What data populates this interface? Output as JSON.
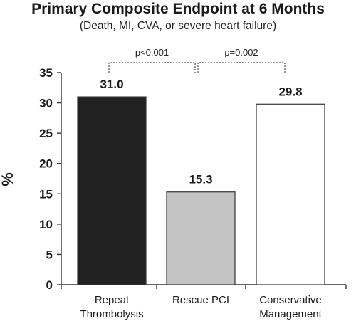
{
  "chart_data": {
    "type": "bar",
    "title": "Primary Composite Endpoint at 6 Months",
    "subtitle": "(Death, MI, CVA, or severe heart failure)",
    "ylabel": "%",
    "xlabel": "",
    "ylim": [
      0,
      35
    ],
    "yticks": [
      0,
      5,
      10,
      15,
      20,
      25,
      30,
      35
    ],
    "categories": [
      [
        "Repeat",
        "Thrombolysis"
      ],
      [
        "Rescue PCI"
      ],
      [
        "Conservative",
        "Management"
      ]
    ],
    "values": [
      31.0,
      15.3,
      29.8
    ],
    "value_labels": [
      "31.0",
      "15.3",
      "29.8"
    ],
    "bar_colors": [
      "#222222",
      "#c4c4c4",
      "#ffffff"
    ],
    "comparisons": [
      {
        "from": 0,
        "to": 1,
        "label": "p<0.001"
      },
      {
        "from": 1,
        "to": 2,
        "label": "p=0.002"
      }
    ],
    "grid": false,
    "legend": "none"
  }
}
